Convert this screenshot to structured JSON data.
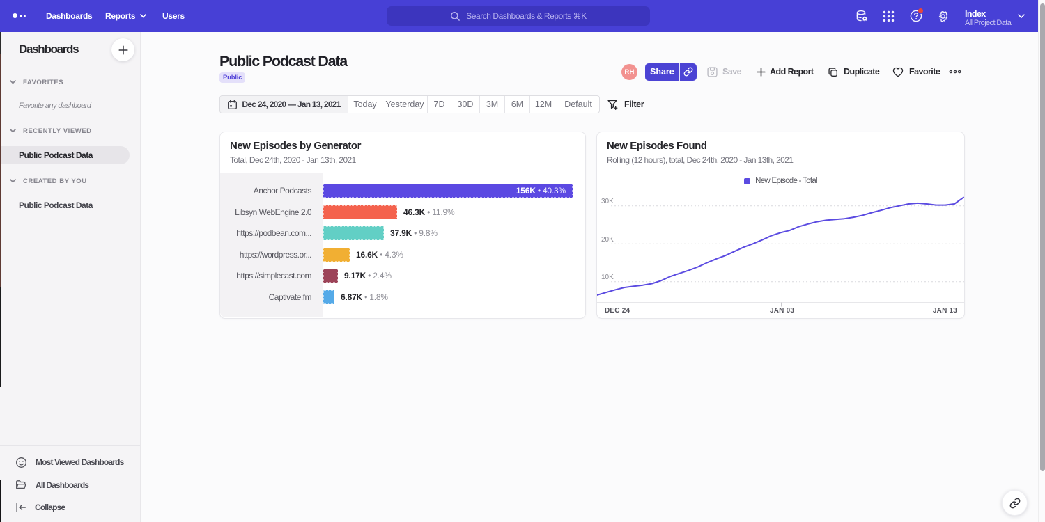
{
  "nav": {
    "links": [
      {
        "label": "Dashboards",
        "chevron": false
      },
      {
        "label": "Reports",
        "chevron": true
      },
      {
        "label": "Users",
        "chevron": false
      }
    ],
    "search_placeholder": "Search Dashboards & Reports ⌘K",
    "project": {
      "name": "Index",
      "scope": "All Project Data"
    }
  },
  "sidebar": {
    "title": "Dashboards",
    "sections": [
      {
        "label": "FAVORITES",
        "hint": "Favorite any dashboard",
        "items": []
      },
      {
        "label": "RECENTLY VIEWED",
        "hint": null,
        "items": [
          {
            "label": "Public Podcast Data",
            "selected": true
          }
        ]
      },
      {
        "label": "CREATED BY YOU",
        "hint": null,
        "items": [
          {
            "label": "Public Podcast Data",
            "selected": false
          }
        ]
      }
    ],
    "footer": [
      {
        "icon": "smiley-icon",
        "label": "Most Viewed Dashboards"
      },
      {
        "icon": "folder-icon",
        "label": "All Dashboards"
      },
      {
        "icon": "collapse-icon",
        "label": "Collapse"
      }
    ]
  },
  "page": {
    "title": "Public Podcast Data",
    "badge": "Public",
    "avatar_initials": "RH",
    "actions": {
      "share": "Share",
      "save": "Save",
      "add_report": "Add Report",
      "duplicate": "Duplicate",
      "favorite": "Favorite"
    }
  },
  "daterange": {
    "value": "Dec 24, 2020 — Jan 13, 2021",
    "presets": [
      "Today",
      "Yesterday",
      "7D",
      "30D",
      "3M",
      "6M",
      "12M",
      "Default"
    ],
    "preset_widths": [
      49,
      65,
      34,
      41,
      36,
      36,
      39,
      60
    ],
    "filter_label": "Filter"
  },
  "chart_data": [
    {
      "type": "bar",
      "orientation": "horizontal",
      "title": "New Episodes by Generator",
      "subtitle": "Total, Dec 24th, 2020 - Jan 13th, 2021",
      "categories": [
        "Anchor Podcasts",
        "Libsyn WebEngine 2.0",
        "https://podbean.com...",
        "https://wordpress.or...",
        "https://simplecast.com",
        "Captivate.fm"
      ],
      "values": [
        156000,
        46300,
        37900,
        16600,
        9170,
        6870
      ],
      "value_labels": [
        "156K",
        "46.3K",
        "37.9K",
        "16.6K",
        "9.17K",
        "6.87K"
      ],
      "percent_labels": [
        "40.3%",
        "11.9%",
        "9.8%",
        "4.3%",
        "2.4%",
        "1.8%"
      ],
      "colors": [
        "#5B49E2",
        "#F4624D",
        "#62CFC5",
        "#F1AF33",
        "#9C4358",
        "#55AAE8"
      ],
      "xlabel": "",
      "ylabel": "",
      "xmax": 156000
    },
    {
      "type": "line",
      "title": "New Episodes Found",
      "subtitle": "Rolling (12 hours), total, Dec 24th, 2020 - Jan 13th, 2021",
      "legend": [
        "New Episode - Total"
      ],
      "color": "#5B4BE1",
      "x_tick_labels": [
        "DEC 24",
        "JAN 03",
        "JAN 13"
      ],
      "y_ticks": [
        {
          "value": 10000,
          "label": "10K"
        },
        {
          "value": 20000,
          "label": "20K"
        },
        {
          "value": 30000,
          "label": "30K"
        }
      ],
      "ylim": [
        4500,
        34000
      ],
      "x_range_days": [
        "Dec 24, 2020",
        "Jan 13, 2021"
      ],
      "values": [
        6500,
        7200,
        7900,
        8500,
        8800,
        9100,
        9500,
        10300,
        11400,
        12200,
        13000,
        13900,
        15000,
        16000,
        16900,
        18000,
        19100,
        20000,
        21000,
        22100,
        22900,
        23500,
        24500,
        25200,
        25800,
        26200,
        26400,
        26600,
        27000,
        27500,
        28200,
        28800,
        29500,
        30000,
        30500,
        30700,
        30500,
        30200,
        30200,
        30500,
        32200
      ]
    }
  ]
}
